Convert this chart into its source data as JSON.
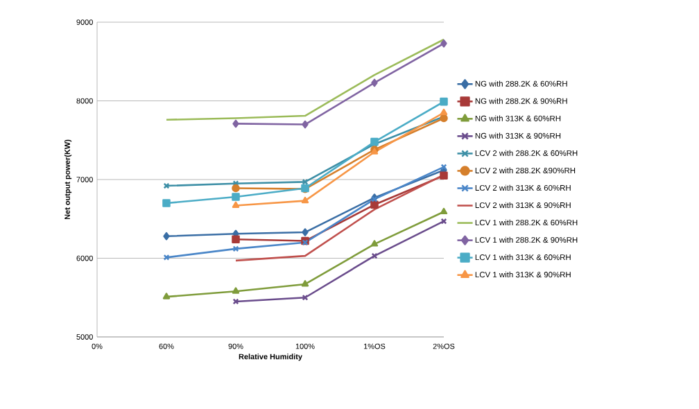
{
  "chart_data": {
    "type": "line",
    "xlabel": "Relative Humidity",
    "ylabel": "Net output power(KW)",
    "categories": [
      "0%",
      "60%",
      "90%",
      "100%",
      "1%OS",
      "2%OS"
    ],
    "ylim": [
      5000,
      9000
    ],
    "yticks": [
      5000,
      6000,
      7000,
      8000,
      9000
    ],
    "grid": "y",
    "legend": "right",
    "line_style": "solid",
    "series": [
      {
        "name": "NG with 288.2K & 60%RH",
        "color": "#3a6ea5",
        "marker": "diamond",
        "values": [
          null,
          6280,
          6310,
          6330,
          6770,
          7120
        ]
      },
      {
        "name": "NG with 288.2K & 90%RH",
        "color": "#a83a38",
        "marker": "square",
        "values": [
          null,
          null,
          6240,
          6220,
          6680,
          7050
        ]
      },
      {
        "name": "NG with 313K & 60%RH",
        "color": "#7f9c3b",
        "marker": "triangle",
        "values": [
          null,
          5510,
          5580,
          5670,
          6180,
          6590
        ]
      },
      {
        "name": "NG with 313K & 90%RH",
        "color": "#6a4c8c",
        "marker": "cross",
        "values": [
          null,
          null,
          5450,
          5500,
          6030,
          6470
        ]
      },
      {
        "name": "LCV 2 with 288.2K & 60%RH",
        "color": "#3d8fa6",
        "marker": "cross",
        "values": [
          null,
          6920,
          6950,
          6970,
          7450,
          7800
        ]
      },
      {
        "name": "LCV 2 with 288.2K &90%RH",
        "color": "#d57f2c",
        "marker": "circle",
        "values": [
          null,
          null,
          6890,
          6880,
          7380,
          7780
        ]
      },
      {
        "name": "LCV 2 with 313K & 60%RH",
        "color": "#4a86c8",
        "marker": "cross",
        "values": [
          null,
          6010,
          6120,
          6200,
          6750,
          7160
        ]
      },
      {
        "name": "LCV 2 with 313K & 90%RH",
        "color": "#c0504d",
        "marker": "none",
        "values": [
          null,
          null,
          5970,
          6030,
          6620,
          7060
        ]
      },
      {
        "name": "LCV 1 with 288.2K & 60%RH",
        "color": "#9bbb59",
        "marker": "none",
        "values": [
          null,
          7760,
          7780,
          7810,
          8330,
          8780
        ]
      },
      {
        "name": "LCV 1 with 288.2K & 90%RH",
        "color": "#8064a2",
        "marker": "diamond",
        "values": [
          null,
          null,
          7710,
          7700,
          8230,
          8730
        ]
      },
      {
        "name": "LCV 1 with 313K & 60%RH",
        "color": "#4bacc6",
        "marker": "square",
        "values": [
          null,
          6700,
          6780,
          6890,
          7480,
          7990
        ]
      },
      {
        "name": "LCV 1 with 313K & 90%RH",
        "color": "#f79646",
        "marker": "triangle",
        "values": [
          null,
          null,
          6670,
          6730,
          7350,
          7850
        ]
      }
    ]
  }
}
